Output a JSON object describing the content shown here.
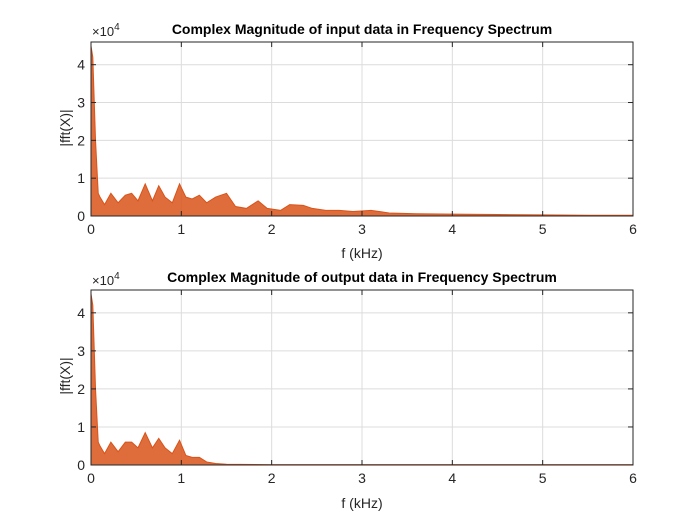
{
  "chart_data": [
    {
      "type": "area",
      "title": "Complex Magnitude of input data in Frequency Spectrum",
      "xlabel": "f (kHz)",
      "ylabel": "|fft(X)|",
      "y_exponent_prefix": "×10",
      "y_exponent_power": "4",
      "xlim": [
        0,
        6
      ],
      "ylim": [
        0,
        4.6
      ],
      "xticks": [
        "0",
        "1",
        "2",
        "3",
        "4",
        "5",
        "6"
      ],
      "yticks": [
        "0",
        "1",
        "2",
        "3",
        "4"
      ],
      "grid": true,
      "series": [
        {
          "color": "#D95319",
          "x": [
            0,
            0.02,
            0.05,
            0.08,
            0.1,
            0.15,
            0.22,
            0.3,
            0.38,
            0.45,
            0.52,
            0.6,
            0.68,
            0.75,
            0.82,
            0.9,
            0.98,
            1.05,
            1.12,
            1.2,
            1.28,
            1.38,
            1.5,
            1.6,
            1.72,
            1.85,
            1.95,
            2.1,
            2.2,
            2.35,
            2.45,
            2.6,
            2.75,
            2.9,
            3.1,
            3.3,
            3.6,
            4.0,
            4.5,
            5.0,
            5.5,
            6.0
          ],
          "y": [
            4.5,
            4.2,
            2.0,
            0.6,
            0.5,
            0.3,
            0.6,
            0.35,
            0.55,
            0.6,
            0.4,
            0.85,
            0.4,
            0.8,
            0.5,
            0.35,
            0.85,
            0.5,
            0.45,
            0.55,
            0.35,
            0.5,
            0.6,
            0.25,
            0.2,
            0.4,
            0.2,
            0.15,
            0.3,
            0.28,
            0.2,
            0.15,
            0.15,
            0.12,
            0.15,
            0.08,
            0.06,
            0.05,
            0.04,
            0.03,
            0.02,
            0.02
          ]
        }
      ]
    },
    {
      "type": "area",
      "title": "Complex Magnitude of output data in Frequency Spectrum",
      "xlabel": "f (kHz)",
      "ylabel": "|fft(X)|",
      "y_exponent_prefix": "×10",
      "y_exponent_power": "4",
      "xlim": [
        0,
        6
      ],
      "ylim": [
        0,
        4.6
      ],
      "xticks": [
        "0",
        "1",
        "2",
        "3",
        "4",
        "5",
        "6"
      ],
      "yticks": [
        "0",
        "1",
        "2",
        "3",
        "4"
      ],
      "grid": true,
      "series": [
        {
          "color": "#D95319",
          "x": [
            0,
            0.02,
            0.05,
            0.08,
            0.1,
            0.15,
            0.22,
            0.3,
            0.38,
            0.45,
            0.52,
            0.6,
            0.68,
            0.75,
            0.82,
            0.9,
            0.98,
            1.05,
            1.12,
            1.2,
            1.28,
            1.38,
            1.5,
            2.0,
            3.0,
            4.0,
            5.0,
            6.0
          ],
          "y": [
            4.5,
            4.2,
            2.0,
            0.6,
            0.5,
            0.3,
            0.6,
            0.35,
            0.6,
            0.6,
            0.45,
            0.85,
            0.45,
            0.7,
            0.45,
            0.3,
            0.65,
            0.25,
            0.2,
            0.2,
            0.08,
            0.04,
            0.02,
            0.01,
            0.01,
            0.01,
            0.01,
            0.01
          ]
        }
      ]
    }
  ]
}
